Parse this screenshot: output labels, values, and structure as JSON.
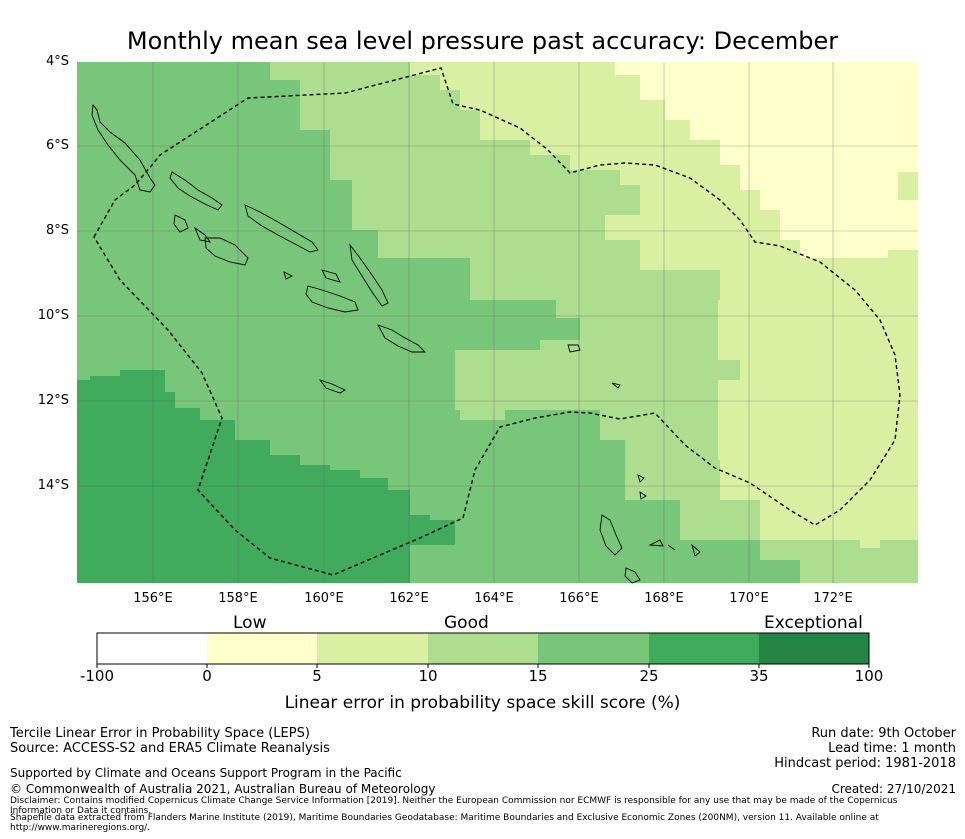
{
  "title": "Monthly mean sea level pressure past accuracy: December",
  "map": {
    "lat_labels": [
      "4°S",
      "6°S",
      "8°S",
      "10°S",
      "12°S",
      "14°S"
    ],
    "lon_labels": [
      "156°E",
      "158°E",
      "160°E",
      "162°E",
      "164°E",
      "166°E",
      "168°E",
      "170°E",
      "172°E"
    ],
    "extent": {
      "lon_min": 154.2,
      "lon_max": 173.9,
      "lat_north": -4.0,
      "lat_south": -16.3
    }
  },
  "colorbar": {
    "categories": [
      "Low",
      "Good",
      "Exceptional"
    ],
    "ticks": [
      "-100",
      "0",
      "5",
      "10",
      "15",
      "25",
      "35",
      "100"
    ],
    "colors": [
      "#ffffff",
      "#ffffcc",
      "#d9f0a3",
      "#addd8e",
      "#78c679",
      "#41ab5d",
      "#238443"
    ],
    "label": "Linear error in probability space skill score (%)"
  },
  "footer": {
    "method": "Tercile Linear Error in Probability Space (LEPS)",
    "source": "Source: ACCESS-S2 and ERA5 Climate Reanalysis",
    "support": "Supported by Climate and Oceans Support Program in the Pacific",
    "copyright": "© Commonwealth of Australia 2021, Australian Bureau of Meteorology",
    "disclaimer1": "Disclaimer: Contains modified Copernicus Climate Change Service Information [2019]. Neither the European Commission nor ECMWF is responsible for any use that may be made of the Copernicus",
    "disclaimer2": "Information or Data it contains.",
    "shapefile1": "Shapefile data extracted from Flanders Marine Institute (2019), Maritime Boundaries Geodatabase: Maritime Boundaries and Exclusive Economic Zones (200NM), version 11. Available online at",
    "shapefile2": "http://www.marineregions.org/.",
    "run_date": "Run date: 9th October",
    "lead_time": "Lead time: 1 month",
    "hindcast": "Hindcast period: 1981-2018",
    "created": "Created: 27/10/2021"
  }
}
